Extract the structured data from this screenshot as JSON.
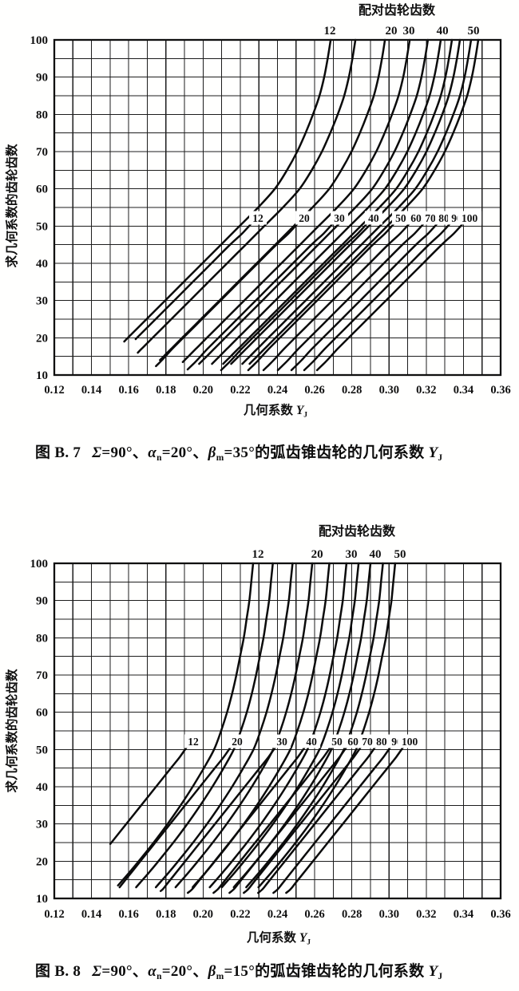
{
  "page": {
    "background": "#ffffff",
    "ink_color": "#101010",
    "grid_color": "#1d1d1d",
    "curve_color": "#0b0b0b"
  },
  "chart_data": [
    {
      "type": "line",
      "figure_label": "图 B. 7",
      "caption_segments": [
        {
          "text": "图 B. 7"
        },
        {
          "text": "gap"
        },
        {
          "text": "Σ",
          "italic": true
        },
        {
          "text": "=90°、"
        },
        {
          "text": "α",
          "italic": true
        },
        {
          "text": "n",
          "sub": true
        },
        {
          "text": "=20°、"
        },
        {
          "text": "β",
          "italic": true
        },
        {
          "text": "m",
          "sub": true
        },
        {
          "text": "=35°的弧齿锥齿轮的几何系数 "
        },
        {
          "text": "Y",
          "italic": true
        },
        {
          "text": "J",
          "sub": true
        }
      ],
      "top_axis_title": "配对齿轮齿数",
      "y_axis_title": "求几何系数的齿轮齿数",
      "x_axis_title_segments": [
        {
          "text": "几何系数 "
        },
        {
          "text": "Y",
          "italic": true
        },
        {
          "text": "J",
          "sub": true
        }
      ],
      "x_ticks": [
        "0.12",
        "0.14",
        "0.16",
        "0.18",
        "0.20",
        "0.22",
        "0.24",
        "0.26",
        "0.28",
        "0.30",
        "0.32",
        "0.34",
        "0.36"
      ],
      "x_tick_values": [
        0.12,
        0.14,
        0.16,
        0.18,
        0.2,
        0.22,
        0.24,
        0.26,
        0.28,
        0.3,
        0.32,
        0.34,
        0.36
      ],
      "y_ticks": [
        "100",
        "90",
        "80",
        "70",
        "60",
        "50",
        "40",
        "30",
        "20",
        "10"
      ],
      "y_tick_values": [
        100,
        90,
        80,
        70,
        60,
        50,
        40,
        30,
        20,
        10
      ],
      "x_range": [
        0.12,
        0.36
      ],
      "y_range": [
        10,
        100
      ],
      "grid_step_x": 0.01,
      "grid_step_y": 5,
      "top_curve_labels": [
        {
          "text": "12",
          "x": 0.2681
        },
        {
          "text": "20",
          "x": 0.3012
        },
        {
          "text": "30",
          "x": 0.3106
        },
        {
          "text": "40",
          "x": 0.3287
        },
        {
          "text": "50",
          "x": 0.3454
        }
      ],
      "mid_curve_labels": [
        {
          "text": "12",
          "x": 0.2295
        },
        {
          "text": "20",
          "x": 0.2544
        },
        {
          "text": "30",
          "x": 0.2733
        },
        {
          "text": "40",
          "x": 0.2917
        },
        {
          "text": "50",
          "x": 0.3063
        },
        {
          "text": "60",
          "x": 0.3145
        },
        {
          "text": "70",
          "x": 0.3222
        },
        {
          "text": "80",
          "x": 0.3295
        },
        {
          "text": "90",
          "x": 0.3364
        },
        {
          "text": "100",
          "x": 0.3433
        }
      ],
      "mid_label_y": 52.3,
      "series_upper": {
        "description": "curves rising to top axis (mating gear teeth, labels above chart)",
        "labels": [
          "12",
          "",
          "20",
          "30",
          "",
          "40",
          "",
          "",
          "50",
          ""
        ],
        "x_at_top": [
          0.2686,
          0.2819,
          0.2978,
          0.3111,
          0.3209,
          0.3278,
          0.3338,
          0.3381,
          0.3441,
          0.348
        ],
        "profile_dx_by_z": [
          [
            100,
            0
          ],
          [
            95,
            -0.0016
          ],
          [
            90,
            -0.0035
          ],
          [
            85,
            -0.006
          ],
          [
            80,
            -0.0095
          ],
          [
            75,
            -0.0135
          ],
          [
            70,
            -0.018
          ],
          [
            65,
            -0.0235
          ],
          [
            60,
            -0.03
          ],
          [
            55,
            -0.039
          ],
          [
            50,
            -0.049
          ],
          [
            45,
            -0.059
          ],
          [
            40,
            -0.069
          ],
          [
            35,
            -0.079
          ],
          [
            30,
            -0.089
          ],
          [
            25,
            -0.099
          ],
          [
            20,
            -0.109
          ],
          [
            17,
            -0.115
          ],
          [
            15,
            -0.119
          ],
          [
            13,
            -0.123
          ]
        ],
        "bottom_z": [
          19,
          16,
          14,
          13.5,
          13,
          13,
          13,
          13,
          13,
          13
        ]
      },
      "series_lower": {
        "description": "curves ending at mid-chart labels (mating gear teeth 12-100)",
        "labels": [
          "12",
          "20",
          "30",
          "40",
          "50",
          "60",
          "70",
          "80",
          "90",
          "100"
        ],
        "x_at_label": [
          0.2265,
          0.2514,
          0.2703,
          0.2887,
          0.3033,
          0.3115,
          0.3192,
          0.3265,
          0.3334,
          0.3403
        ],
        "top_z": 51,
        "profile_dx_by_z": [
          [
            51,
            0
          ],
          [
            48,
            -0.0055
          ],
          [
            45,
            -0.012
          ],
          [
            40,
            -0.022
          ],
          [
            35,
            -0.032
          ],
          [
            30,
            -0.042
          ],
          [
            25,
            -0.052
          ],
          [
            20,
            -0.062
          ],
          [
            17,
            -0.068
          ],
          [
            14,
            -0.0735
          ],
          [
            12.5,
            -0.0765
          ],
          [
            11.3,
            -0.079
          ]
        ],
        "bottom_z": [
          20,
          12.5,
          11.5,
          11.3,
          11.3,
          11.3,
          11.3,
          11.3,
          11.3,
          11.3
        ]
      }
    },
    {
      "type": "line",
      "figure_label": "图 B. 8",
      "caption_segments": [
        {
          "text": "图 B. 8"
        },
        {
          "text": "gap"
        },
        {
          "text": "Σ",
          "italic": true
        },
        {
          "text": "=90°、"
        },
        {
          "text": "α",
          "italic": true
        },
        {
          "text": "n",
          "sub": true
        },
        {
          "text": "=20°、"
        },
        {
          "text": "β",
          "italic": true
        },
        {
          "text": "m",
          "sub": true
        },
        {
          "text": "=15°的弧齿锥齿轮的几何系数 "
        },
        {
          "text": "Y",
          "italic": true
        },
        {
          "text": "J",
          "sub": true
        }
      ],
      "top_axis_title": "配对齿轮齿数",
      "y_axis_title": "求几何系数的齿轮齿数",
      "x_axis_title_segments": [
        {
          "text": "几何系数 "
        },
        {
          "text": "Y",
          "italic": true
        },
        {
          "text": "J",
          "sub": true
        }
      ],
      "x_ticks": [
        "0.12",
        "0.14",
        "0.16",
        "0.18",
        "0.20",
        "0.22",
        "0.24",
        "0.26",
        "0.28",
        "0.30",
        "0.32",
        "0.34",
        "0.36"
      ],
      "x_tick_values": [
        0.12,
        0.14,
        0.16,
        0.18,
        0.2,
        0.22,
        0.24,
        0.26,
        0.28,
        0.3,
        0.32,
        0.34,
        0.36
      ],
      "y_ticks": [
        "100",
        "90",
        "80",
        "70",
        "60",
        "50",
        "40",
        "30",
        "20",
        "10"
      ],
      "y_tick_values": [
        100,
        90,
        80,
        70,
        60,
        50,
        40,
        30,
        20,
        10
      ],
      "x_range": [
        0.12,
        0.36
      ],
      "y_range": [
        10,
        100
      ],
      "grid_step_x": 0.01,
      "grid_step_y": 5,
      "top_curve_labels": [
        {
          "text": "12",
          "x": 0.2295
        },
        {
          "text": "20",
          "x": 0.2613
        },
        {
          "text": "30",
          "x": 0.2797
        },
        {
          "text": "40",
          "x": 0.2926
        },
        {
          "text": "50",
          "x": 0.3059
        }
      ],
      "mid_curve_labels": [
        {
          "text": "12",
          "x": 0.1947
        },
        {
          "text": "20",
          "x": 0.2183
        },
        {
          "text": "30",
          "x": 0.2424
        },
        {
          "text": "40",
          "x": 0.2583
        },
        {
          "text": "50",
          "x": 0.272
        },
        {
          "text": "60",
          "x": 0.2806
        },
        {
          "text": "70",
          "x": 0.2883
        },
        {
          "text": "80",
          "x": 0.296
        },
        {
          "text": "90",
          "x": 0.3042
        },
        {
          "text": "100",
          "x": 0.3111
        }
      ],
      "mid_label_y": 52.3,
      "series_upper": {
        "description": "curves rising to top axis (mating gear teeth, labels above chart)",
        "labels": [
          "12",
          "",
          "",
          "20",
          "",
          "30",
          "",
          "40",
          "",
          "50"
        ],
        "x_at_top": [
          0.2269,
          0.2375,
          0.2481,
          0.2587,
          0.2679,
          0.2771,
          0.2836,
          0.29,
          0.2967,
          0.3033
        ],
        "profile_dx_by_z": [
          [
            100,
            0
          ],
          [
            95,
            -0.001
          ],
          [
            90,
            -0.002
          ],
          [
            85,
            -0.0035
          ],
          [
            80,
            -0.005
          ],
          [
            75,
            -0.007
          ],
          [
            70,
            -0.009
          ],
          [
            65,
            -0.0113
          ],
          [
            60,
            -0.014
          ],
          [
            55,
            -0.0172
          ],
          [
            50,
            -0.021
          ],
          [
            45,
            -0.0265
          ],
          [
            40,
            -0.0325
          ],
          [
            35,
            -0.039
          ],
          [
            30,
            -0.046
          ],
          [
            25,
            -0.0535
          ],
          [
            20,
            -0.0615
          ],
          [
            17,
            -0.0665
          ],
          [
            15,
            -0.07
          ],
          [
            13,
            -0.0735
          ]
        ],
        "bottom_z": [
          13.5,
          13,
          13,
          12.5,
          12.5,
          12.5,
          12,
          12,
          12,
          12
        ]
      },
      "series_lower": {
        "description": "curves ending at mid-chart labels (mating gear teeth 12-100)",
        "labels": [
          "12",
          "20",
          "30",
          "40",
          "50",
          "60",
          "70",
          "80",
          "90",
          "100"
        ],
        "x_at_label": [
          0.1917,
          0.2153,
          0.2394,
          0.2552,
          0.269,
          0.2776,
          0.2853,
          0.293,
          0.3012,
          0.3081
        ],
        "top_z": 51,
        "profile_dx_by_z": [
          [
            51,
            0
          ],
          [
            48,
            -0.0042
          ],
          [
            45,
            -0.009
          ],
          [
            40,
            -0.017
          ],
          [
            35,
            -0.025
          ],
          [
            30,
            -0.033
          ],
          [
            25,
            -0.041
          ],
          [
            20,
            -0.049
          ],
          [
            17,
            -0.0538
          ],
          [
            14,
            -0.0586
          ],
          [
            12.5,
            -0.061
          ],
          [
            11.5,
            -0.0634
          ]
        ],
        "bottom_z": [
          25,
          13,
          12,
          11.5,
          11.5,
          11.5,
          11.5,
          11.5,
          11.5,
          11.5
        ]
      }
    }
  ]
}
